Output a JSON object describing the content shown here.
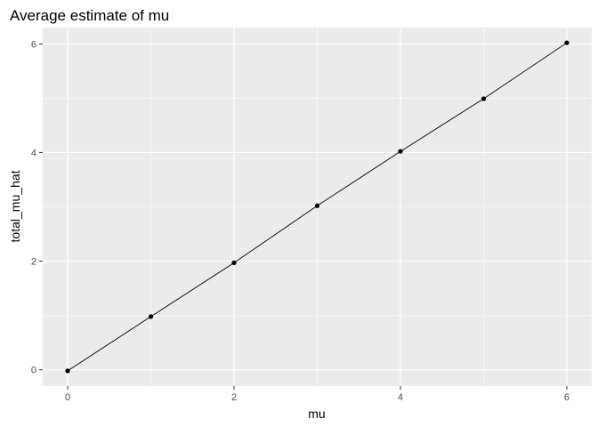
{
  "chart_data": {
    "type": "line",
    "title": "Average estimate of mu",
    "xlabel": "mu",
    "ylabel": "total_mu_hat",
    "x": [
      0,
      1,
      2,
      3,
      4,
      5,
      6
    ],
    "series": [
      {
        "values": [
          -0.02,
          0.98,
          1.97,
          3.02,
          4.02,
          4.99,
          6.02
        ]
      }
    ],
    "xlim": [
      -0.3,
      6.3
    ],
    "ylim": [
      -0.3,
      6.3
    ],
    "x_ticks": [
      "0",
      "2",
      "4",
      "6"
    ],
    "y_ticks": [
      "0",
      "2",
      "4",
      "6"
    ],
    "grid": true,
    "colors": {
      "panel": "#ebebeb",
      "grid": "#ffffff",
      "line": "#000000",
      "point": "#000000",
      "tick": "#4d4d4d"
    }
  }
}
